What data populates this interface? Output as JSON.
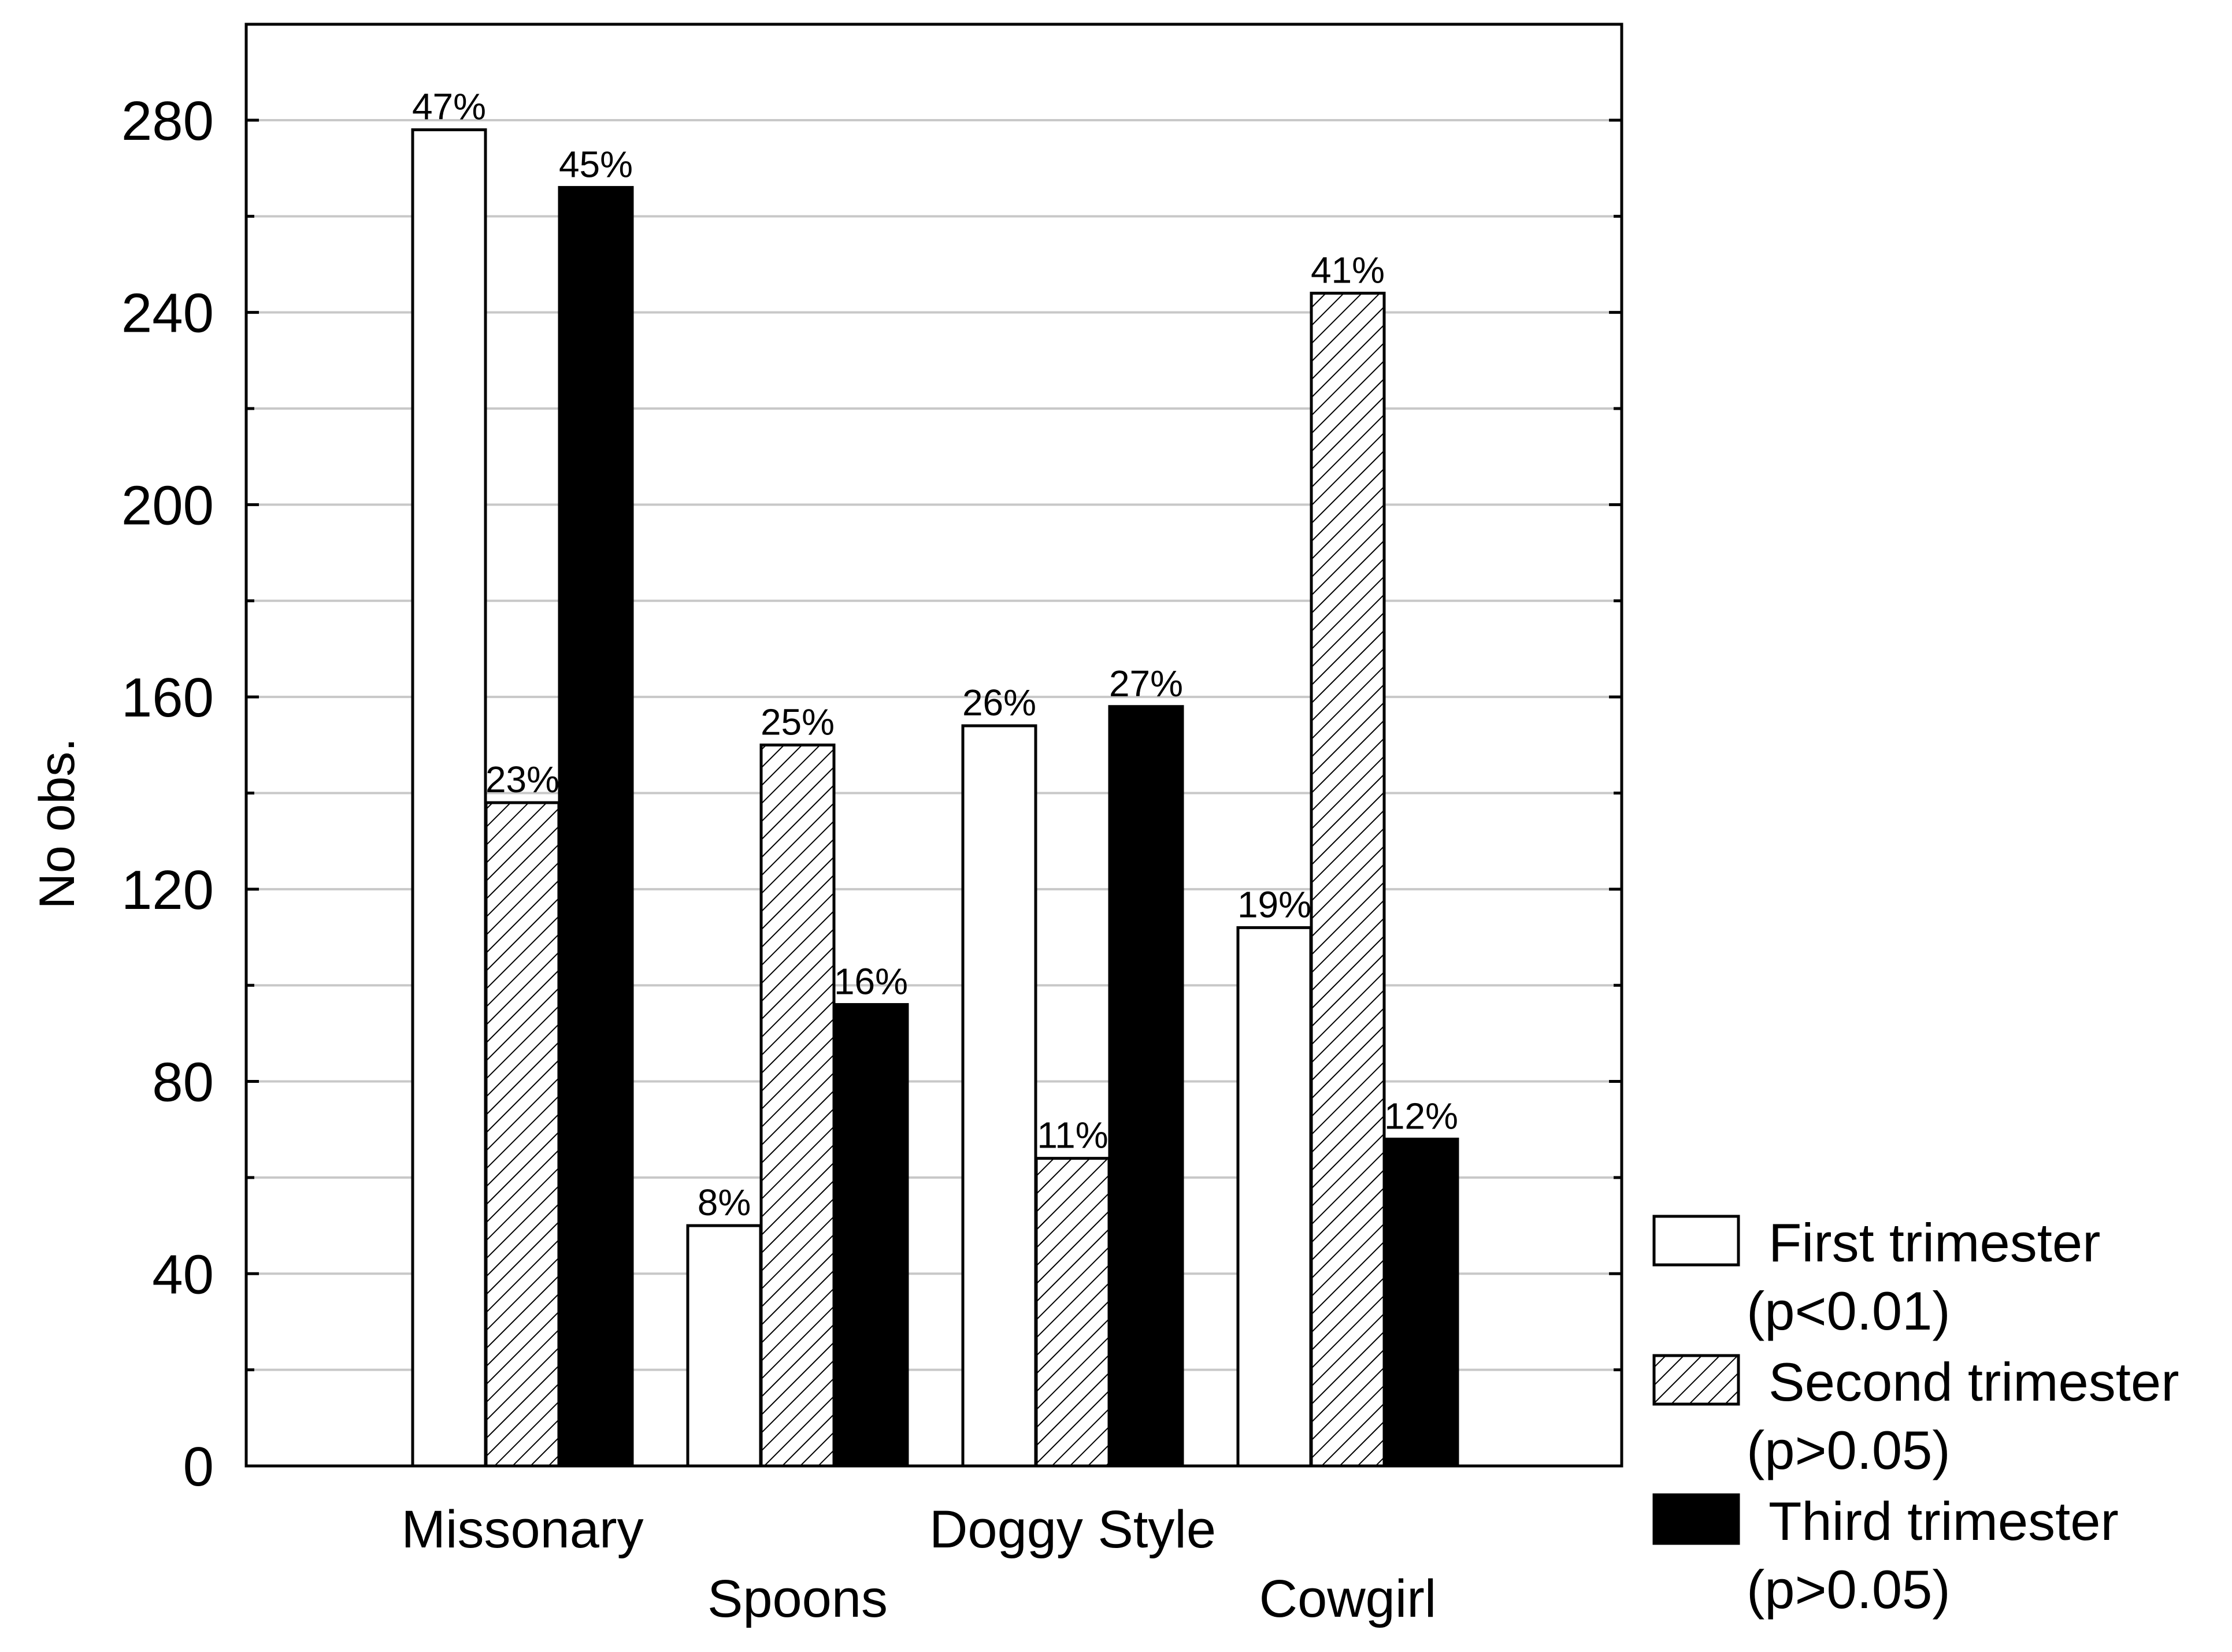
{
  "chart_data": {
    "type": "bar",
    "ylabel": "No obs.",
    "xlabel": "",
    "ylim": [
      0,
      300
    ],
    "yticks": [
      0,
      40,
      80,
      120,
      160,
      200,
      240,
      280
    ],
    "grid": true,
    "legend_position": "right-bottom",
    "categories": [
      "Missonary",
      "Spoons",
      "Doggy Style",
      "Cowgirl"
    ],
    "series": [
      {
        "name": "First trimester",
        "name_line2": "(p<0.01)",
        "fill": "white",
        "values": [
          278,
          50,
          154,
          112
        ],
        "labels": [
          "47%",
          "8%",
          "26%",
          "19%"
        ]
      },
      {
        "name": "Second trimester",
        "name_line2": "(p>0.05)",
        "fill": "hatched",
        "values": [
          138,
          150,
          64,
          244
        ],
        "labels": [
          "23%",
          "25%",
          "11%",
          "41%"
        ]
      },
      {
        "name": "Third trimester",
        "name_line2": "(p>0.05)",
        "fill": "black",
        "values": [
          266,
          96,
          158,
          68
        ],
        "labels": [
          "45%",
          "16%",
          "27%",
          "12%"
        ]
      }
    ]
  },
  "colors": {
    "grid": "#c8c8c8",
    "axis": "#000000",
    "dark_bar": "#000000",
    "light_bar": "#ffffff"
  }
}
